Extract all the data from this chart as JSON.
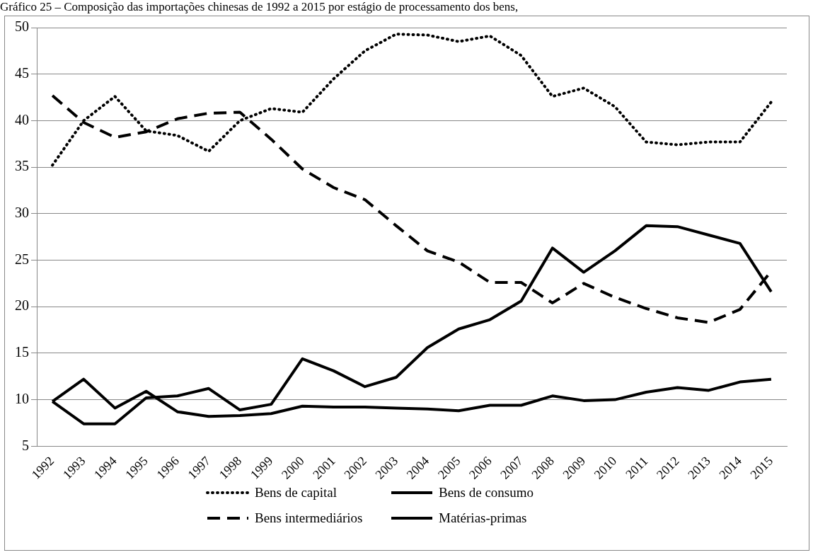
{
  "chart_data": {
    "type": "line",
    "title": "Gráfico 25 – Composição das importações chinesas de 1992 a 2015 por estágio de processamento dos bens,",
    "categories": [
      "1992",
      "1993",
      "1994",
      "1995",
      "1996",
      "1997",
      "1998",
      "1999",
      "2000",
      "2001",
      "2002",
      "2003",
      "2004",
      "2005",
      "2006",
      "2007",
      "2008",
      "2009",
      "2010",
      "2011",
      "2012",
      "2013",
      "2014",
      "2015"
    ],
    "series": [
      {
        "name": "Bens de capital",
        "color": "#000000",
        "line_style": "dotted",
        "values": [
          35.2,
          40.0,
          42.6,
          38.9,
          38.4,
          36.7,
          40.0,
          41.3,
          40.9,
          44.5,
          47.5,
          49.3,
          49.2,
          48.5,
          49.1,
          47.0,
          42.6,
          43.5,
          41.5,
          37.7,
          37.4,
          37.7,
          37.7,
          42.0
        ]
      },
      {
        "name": "Bens de consumo",
        "color": "#000000",
        "line_style": "solid",
        "values": [
          9.8,
          12.2,
          9.1,
          10.9,
          8.7,
          8.2,
          8.3,
          8.5,
          9.3,
          9.2,
          9.2,
          9.1,
          9.0,
          8.8,
          9.4,
          9.4,
          10.4,
          9.9,
          10.0,
          10.8,
          11.3,
          11.0,
          11.9,
          12.2
        ]
      },
      {
        "name": "Bens intermediários",
        "color": "#000000",
        "line_style": "dashed",
        "values": [
          42.7,
          39.8,
          38.2,
          38.8,
          40.2,
          40.8,
          40.9,
          38.0,
          34.8,
          32.8,
          31.5,
          28.7,
          26.0,
          24.8,
          22.6,
          22.6,
          20.4,
          22.5,
          21.0,
          19.8,
          18.8,
          18.3,
          19.7,
          23.8
        ]
      },
      {
        "name": "Matérias-primas",
        "color": "#000000",
        "line_style": "solid",
        "values": [
          9.8,
          7.4,
          7.4,
          10.2,
          10.4,
          11.2,
          8.9,
          9.5,
          14.4,
          13.1,
          11.4,
          12.4,
          15.6,
          17.6,
          18.6,
          20.6,
          26.3,
          23.7,
          26.0,
          28.7,
          28.6,
          27.7,
          26.8,
          21.6
        ]
      }
    ],
    "ylim": [
      5,
      50
    ],
    "yticks": [
      5,
      10,
      15,
      20,
      25,
      30,
      35,
      40,
      45,
      50
    ],
    "grid": "y",
    "legend": "bottom",
    "marker": "none"
  }
}
